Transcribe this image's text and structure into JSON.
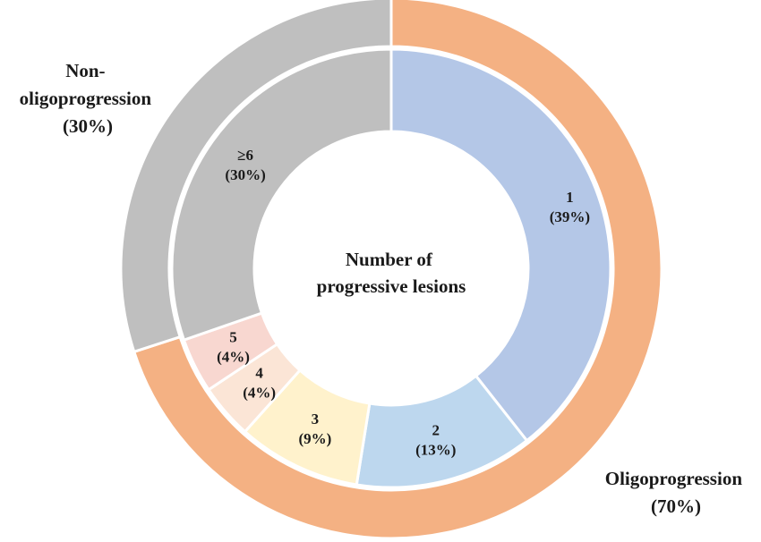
{
  "chart_data": {
    "type": "donut",
    "center_label": [
      "Number of",
      "progressive lesions"
    ],
    "outer_ring": [
      {
        "name": "Oligoprogression",
        "percent_label": "(70%)",
        "value": 70,
        "color": "#F4B183"
      },
      {
        "name": "Non-oligoprogression",
        "percent_label": "(30%)",
        "value": 30,
        "color": "#BFBFBF"
      }
    ],
    "inner_ring": [
      {
        "category": "1",
        "percent_label": "(39%)",
        "value": 39,
        "color": "#B4C7E7"
      },
      {
        "category": "2",
        "percent_label": "(13%)",
        "value": 13,
        "color": "#BDD7EE"
      },
      {
        "category": "3",
        "percent_label": "(9%)",
        "value": 9,
        "color": "#FFF2CC"
      },
      {
        "category": "4",
        "percent_label": "(4%)",
        "value": 4,
        "color": "#FBE5D6"
      },
      {
        "category": "5",
        "percent_label": "(4%)",
        "value": 4,
        "color": "#F8D7D0"
      },
      {
        "category": "≥6",
        "percent_label": "(30%)",
        "value": 30,
        "color": "#BFBFBF"
      }
    ]
  }
}
